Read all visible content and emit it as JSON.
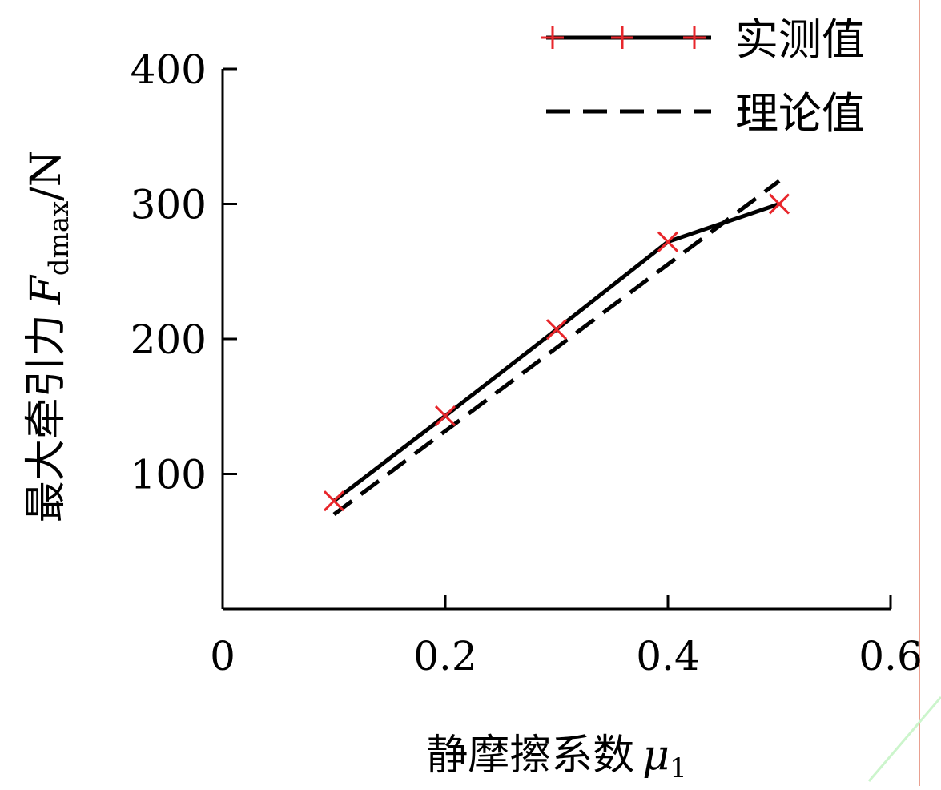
{
  "chart_data": {
    "type": "line",
    "title": "",
    "xlabel": "静摩擦系数",
    "xlabel_symbol": "μ",
    "xlabel_sub": "1",
    "ylabel": "最大牵引力",
    "ylabel_symbol": "F",
    "ylabel_sub": "dmax",
    "ylabel_unit": "/N",
    "xlim": [
      0,
      0.6
    ],
    "ylim": [
      0,
      400
    ],
    "x_ticks": [
      0,
      0.2,
      0.4,
      0.6
    ],
    "x_tick_labels": [
      "0",
      "0.2",
      "0.4",
      "0.6"
    ],
    "y_ticks": [
      100,
      200,
      300,
      400
    ],
    "y_tick_labels": [
      "100",
      "200",
      "300",
      "400"
    ],
    "grid": false,
    "legend_position": "top-right",
    "series": [
      {
        "name": "实测值",
        "style": "solid",
        "marker": "x",
        "line_color": "#000000",
        "marker_color": "#e8262b",
        "x": [
          0.1,
          0.2,
          0.3,
          0.4,
          0.5
        ],
        "values": [
          80,
          143,
          207,
          272,
          300
        ]
      },
      {
        "name": "理论值",
        "style": "dashed",
        "line_color": "#000000",
        "x": [
          0.1,
          0.5
        ],
        "values": [
          70,
          317
        ]
      }
    ]
  }
}
